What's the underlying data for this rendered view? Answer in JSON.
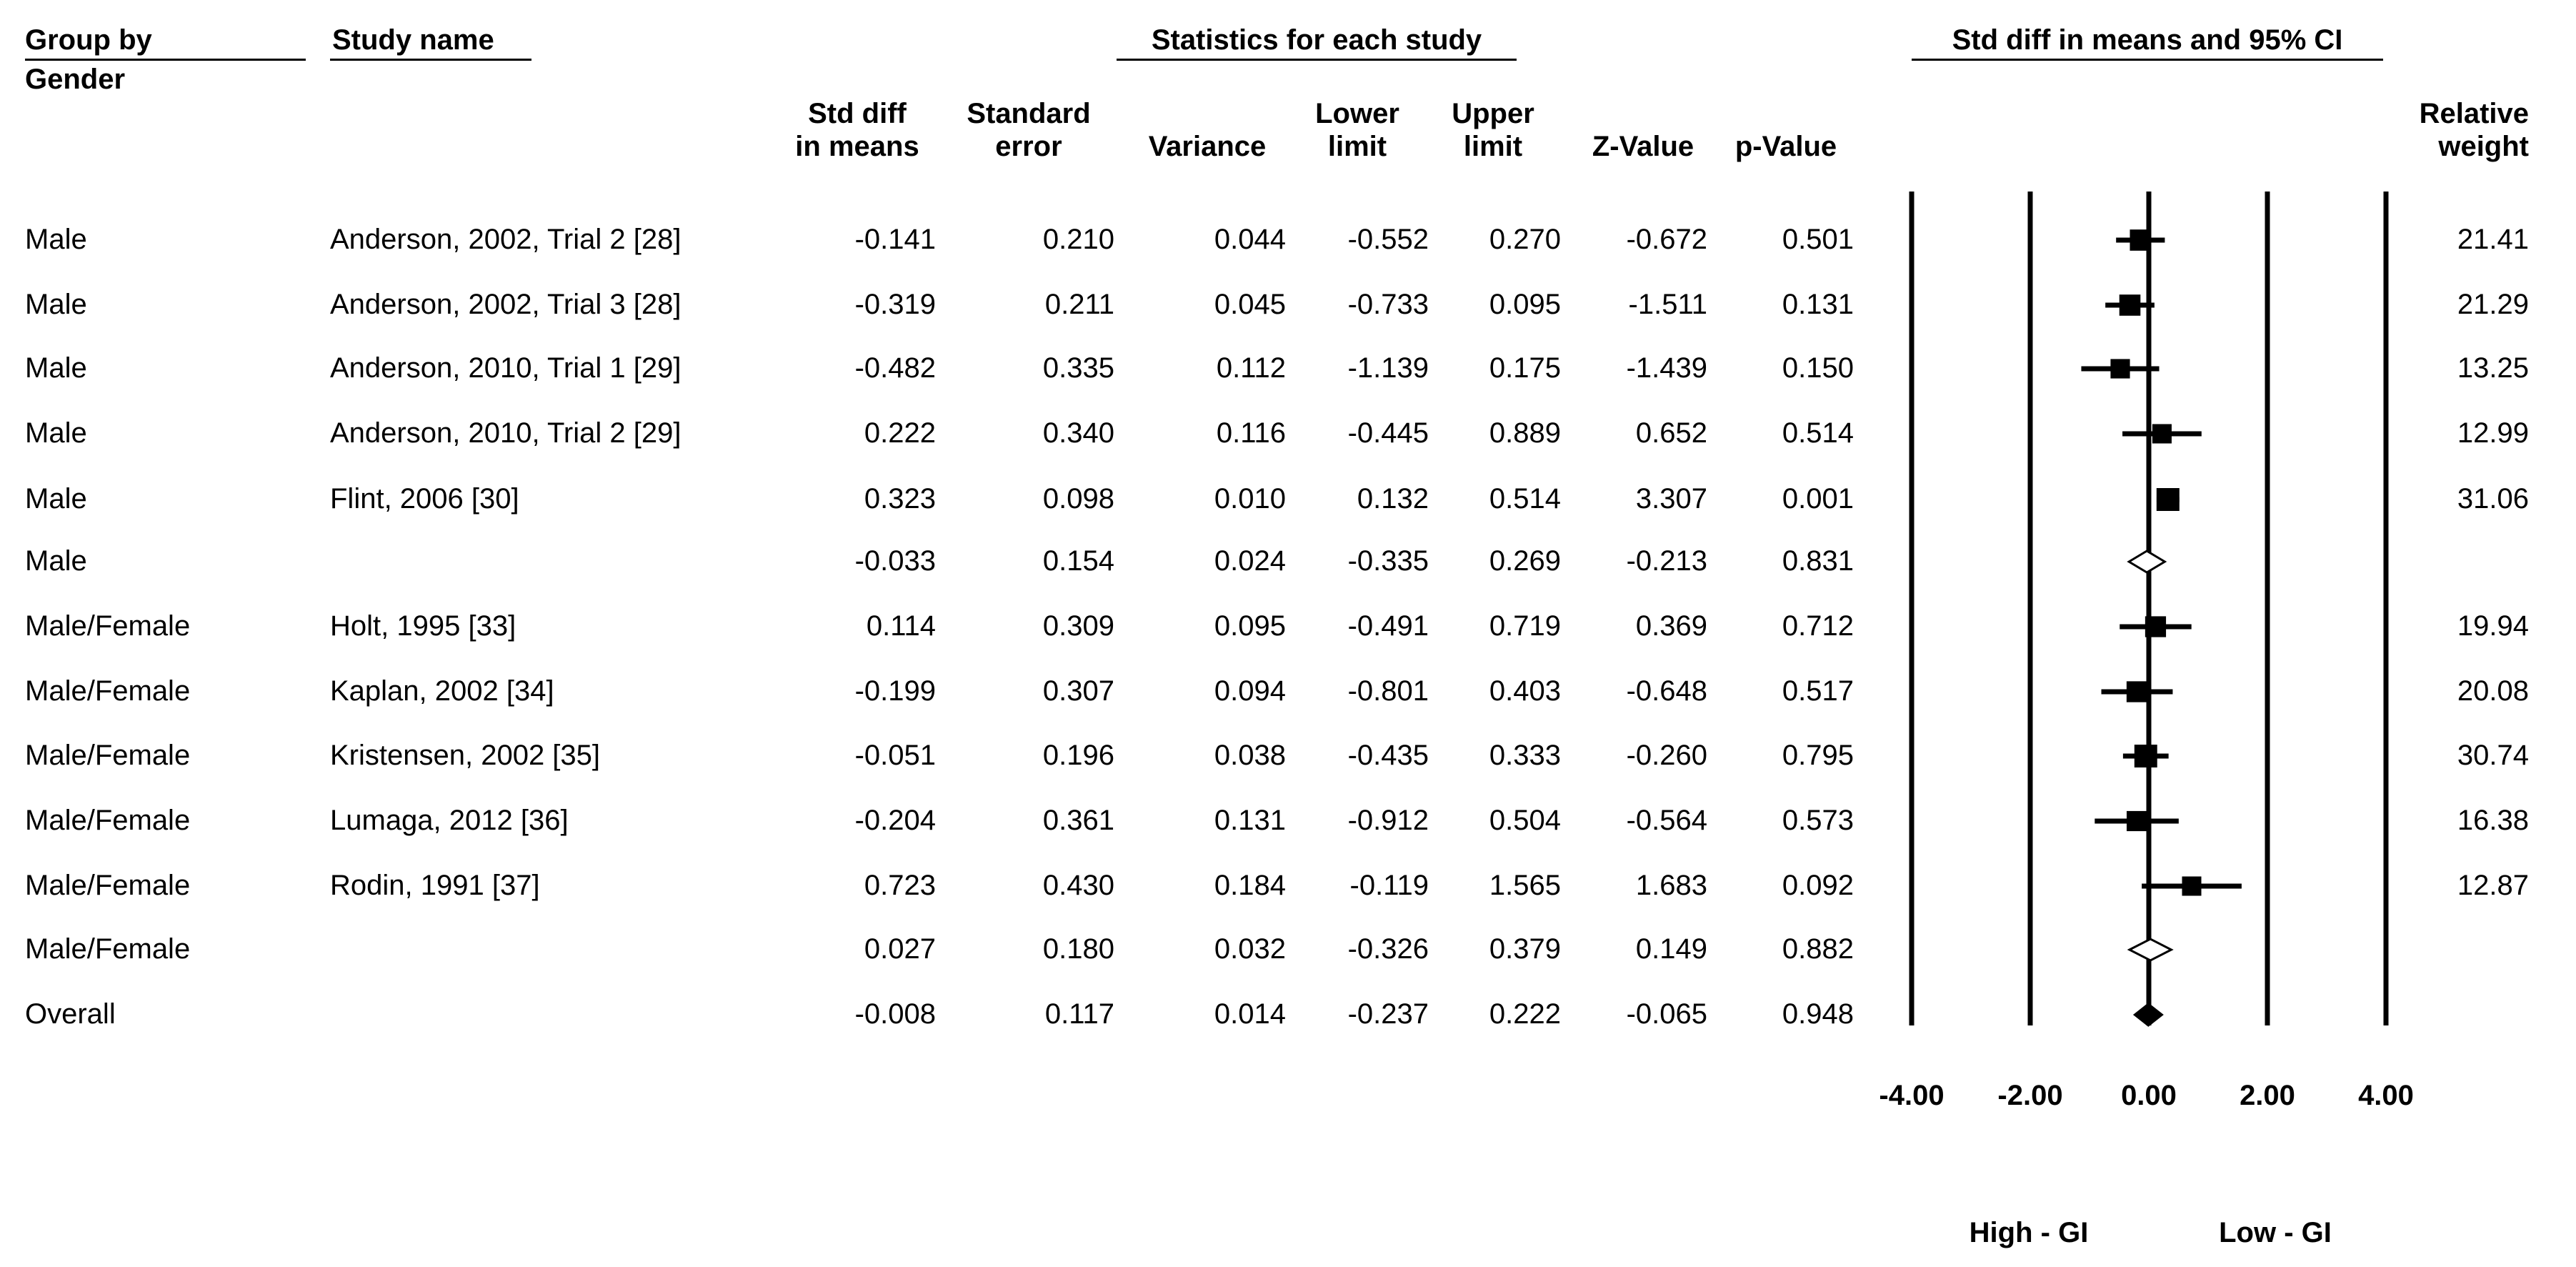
{
  "headers": {
    "group_by": "Group by",
    "gender": "Gender",
    "study_name": "Study name",
    "stats_group": "Statistics for each study",
    "ci_group": "Std diff in means and 95% CI",
    "std_diff": [
      "Std diff",
      "in means"
    ],
    "std_error": [
      "Standard",
      "error"
    ],
    "variance": "Variance",
    "lower": [
      "Lower",
      "limit"
    ],
    "upper": [
      "Upper",
      "limit"
    ],
    "z_value": "Z-Value",
    "p_value": "p-Value",
    "rel_weight": [
      "Relative",
      "weight"
    ]
  },
  "rows": [
    {
      "group": "Male",
      "study": "Anderson, 2002, Trial 2 [28]",
      "smd": "-0.141",
      "se": "0.210",
      "var": "0.044",
      "lower": "-0.552",
      "upper": "0.270",
      "z": "-0.672",
      "p": "0.501",
      "weight": "21.41",
      "kind": "study"
    },
    {
      "group": "Male",
      "study": "Anderson, 2002, Trial 3 [28]",
      "smd": "-0.319",
      "se": "0.211",
      "var": "0.045",
      "lower": "-0.733",
      "upper": "0.095",
      "z": "-1.511",
      "p": "0.131",
      "weight": "21.29",
      "kind": "study"
    },
    {
      "group": "Male",
      "study": "Anderson, 2010, Trial 1 [29]",
      "smd": "-0.482",
      "se": "0.335",
      "var": "0.112",
      "lower": "-1.139",
      "upper": "0.175",
      "z": "-1.439",
      "p": "0.150",
      "weight": "13.25",
      "kind": "study"
    },
    {
      "group": "Male",
      "study": "Anderson, 2010, Trial 2 [29]",
      "smd": "0.222",
      "se": "0.340",
      "var": "0.116",
      "lower": "-0.445",
      "upper": "0.889",
      "z": "0.652",
      "p": "0.514",
      "weight": "12.99",
      "kind": "study"
    },
    {
      "group": "Male",
      "study": "Flint, 2006   [30]",
      "smd": "0.323",
      "se": "0.098",
      "var": "0.010",
      "lower": "0.132",
      "upper": "0.514",
      "z": "3.307",
      "p": "0.001",
      "weight": "31.06",
      "kind": "study"
    },
    {
      "group": "Male",
      "study": "",
      "smd": "-0.033",
      "se": "0.154",
      "var": "0.024",
      "lower": "-0.335",
      "upper": "0.269",
      "z": "-0.213",
      "p": "0.831",
      "weight": "",
      "kind": "subtotal"
    },
    {
      "group": "Male/Female",
      "study": "Holt, 1995  [33]",
      "smd": "0.114",
      "se": "0.309",
      "var": "0.095",
      "lower": "-0.491",
      "upper": "0.719",
      "z": "0.369",
      "p": "0.712",
      "weight": "19.94",
      "kind": "study"
    },
    {
      "group": "Male/Female",
      "study": "Kaplan, 2002  [34]",
      "smd": "-0.199",
      "se": "0.307",
      "var": "0.094",
      "lower": "-0.801",
      "upper": "0.403",
      "z": "-0.648",
      "p": "0.517",
      "weight": "20.08",
      "kind": "study"
    },
    {
      "group": "Male/Female",
      "study": "Kristensen, 2002  [35]",
      "smd": "-0.051",
      "se": "0.196",
      "var": "0.038",
      "lower": "-0.435",
      "upper": "0.333",
      "z": "-0.260",
      "p": "0.795",
      "weight": "30.74",
      "kind": "study"
    },
    {
      "group": "Male/Female",
      "study": "Lumaga, 2012  [36]",
      "smd": "-0.204",
      "se": "0.361",
      "var": "0.131",
      "lower": "-0.912",
      "upper": "0.504",
      "z": "-0.564",
      "p": "0.573",
      "weight": "16.38",
      "kind": "study"
    },
    {
      "group": "Male/Female",
      "study": "Rodin, 1991  [37]",
      "smd": "0.723",
      "se": "0.430",
      "var": "0.184",
      "lower": "-0.119",
      "upper": "1.565",
      "z": "1.683",
      "p": "0.092",
      "weight": "12.87",
      "kind": "study"
    },
    {
      "group": "Male/Female",
      "study": "",
      "smd": "0.027",
      "se": "0.180",
      "var": "0.032",
      "lower": "-0.326",
      "upper": "0.379",
      "z": "0.149",
      "p": "0.882",
      "weight": "",
      "kind": "subtotal"
    },
    {
      "group": "Overall",
      "study": "",
      "smd": "-0.008",
      "se": "0.117",
      "var": "0.014",
      "lower": "-0.237",
      "upper": "0.222",
      "z": "-0.065",
      "p": "0.948",
      "weight": "",
      "kind": "overall"
    }
  ],
  "chart_data": {
    "type": "forest",
    "title": "Std diff in means and 95% CI",
    "xlim": [
      -4,
      4
    ],
    "x_ticks": [
      -4,
      -2,
      0,
      2,
      4
    ],
    "x_tick_labels": [
      "-4.00",
      "-2.00",
      "0.00",
      "2.00",
      "4.00"
    ],
    "left_label": "High - GI",
    "right_label": "Low - GI",
    "grid": false,
    "colors": {
      "marker": "#000000",
      "subtotal_fill": "#ffffff",
      "overall_fill": "#000000"
    }
  }
}
